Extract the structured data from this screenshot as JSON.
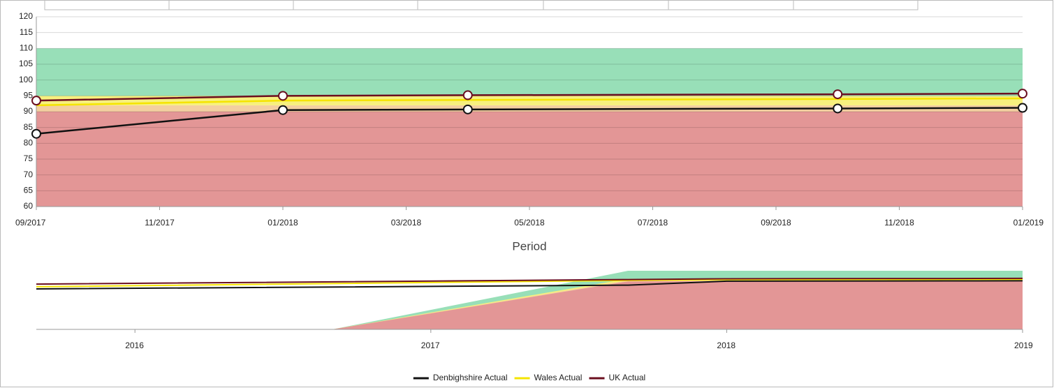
{
  "chart_data": [
    {
      "type": "line",
      "x_axis_label": "Period",
      "xlim": [
        "2017-09",
        "2019-01"
      ],
      "xticks": [
        {
          "value": "2017-09",
          "label": "09/2017"
        },
        {
          "value": "2017-11",
          "label": "11/2017"
        },
        {
          "value": "2018-01",
          "label": "01/2018"
        },
        {
          "value": "2018-03",
          "label": "03/2018"
        },
        {
          "value": "2018-05",
          "label": "05/2018"
        },
        {
          "value": "2018-07",
          "label": "07/2018"
        },
        {
          "value": "2018-09",
          "label": "09/2018"
        },
        {
          "value": "2018-11",
          "label": "11/2018"
        },
        {
          "value": "2019-01",
          "label": "01/2019"
        }
      ],
      "ylim": [
        60,
        120
      ],
      "yticks": [
        60,
        65,
        70,
        75,
        80,
        85,
        90,
        95,
        100,
        105,
        110,
        115,
        120
      ],
      "grid": true,
      "bands": [
        {
          "from": 60,
          "to": 90,
          "color": "#e39696"
        },
        {
          "from": 90,
          "to": 92,
          "color": "#f3cfa0"
        },
        {
          "from": 92,
          "to": 95,
          "color": "#f7f07e"
        },
        {
          "from": 95,
          "to": 110,
          "color": "#98dfb8"
        }
      ],
      "x": [
        "2017-09",
        "2018-01",
        "2018-04",
        "2018-10",
        "2019-01"
      ],
      "series": [
        {
          "name": "Denbighshire Actual",
          "color": "#111111",
          "marker": true,
          "values": [
            83,
            90.5,
            90.7,
            91,
            91.2
          ]
        },
        {
          "name": "Wales Actual",
          "color": "#f5e400",
          "marker": false,
          "values": [
            92,
            93.5,
            93.7,
            94,
            94.2
          ]
        },
        {
          "name": "UK Actual",
          "color": "#6b0f1f",
          "marker": true,
          "values": [
            93.5,
            95,
            95.2,
            95.5,
            95.7
          ]
        }
      ],
      "legend": "bottom"
    },
    {
      "type": "navigator",
      "xlim": [
        "2015-09",
        "2019-01"
      ],
      "xticks": [
        {
          "value": "2016-01",
          "label": "2016"
        },
        {
          "value": "2017-01",
          "label": "2017"
        },
        {
          "value": "2018-01",
          "label": "2018"
        },
        {
          "value": "2019-01",
          "label": "2019"
        }
      ],
      "ylim": [
        0,
        110
      ],
      "areas": [
        {
          "color": "#98dfb8",
          "x": [
            "2016-09",
            "2017-09",
            "2019-01"
          ],
          "values": [
            0,
            110,
            110
          ]
        },
        {
          "color": "#f7f07e",
          "x": [
            "2016-09",
            "2017-09",
            "2019-01"
          ],
          "values": [
            0,
            95,
            95
          ]
        },
        {
          "color": "#f3cfa0",
          "x": [
            "2016-09",
            "2017-09",
            "2019-01"
          ],
          "values": [
            0,
            92,
            92
          ]
        },
        {
          "color": "#e39696",
          "x": [
            "2016-09",
            "2017-09",
            "2019-01"
          ],
          "values": [
            0,
            90,
            90
          ]
        }
      ],
      "x": [
        "2015-09",
        "2017-09",
        "2018-01",
        "2018-04",
        "2018-10",
        "2019-01"
      ],
      "series": [
        {
          "color": "#f5e400",
          "values": [
            80,
            92,
            93.5,
            93.7,
            94,
            94.2
          ]
        },
        {
          "color": "#6b0f1f",
          "values": [
            85,
            93.5,
            95,
            95.2,
            95.5,
            95.7
          ]
        },
        {
          "color": "#111111",
          "values": [
            76,
            83,
            90.5,
            90.7,
            91,
            91.2
          ]
        }
      ]
    }
  ]
}
